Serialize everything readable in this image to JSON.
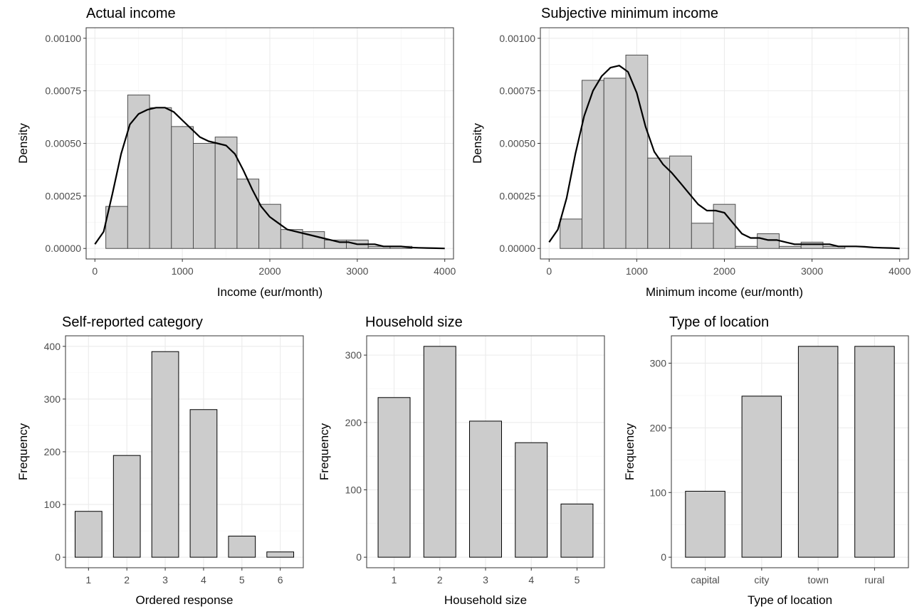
{
  "chart_data": [
    {
      "type": "histogram",
      "title": "Actual income",
      "xlabel": "Income (eur/month)",
      "ylabel": "Density",
      "xlim": [
        0,
        4000
      ],
      "ylim": [
        0,
        0.001
      ],
      "x_ticks": [
        0,
        1000,
        2000,
        3000,
        4000
      ],
      "x_tick_labels": [
        "0",
        "1000",
        "2000",
        "3000",
        "4000"
      ],
      "y_ticks": [
        0,
        0.00025,
        0.0005,
        0.00075,
        0.001
      ],
      "y_tick_labels": [
        "0.00000",
        "0.00025",
        "0.00050",
        "0.00075",
        "0.00100"
      ],
      "grid": true,
      "fill_color": "#cccccc",
      "bins": [
        {
          "x0": 125,
          "x1": 375,
          "density": 0.0002
        },
        {
          "x0": 375,
          "x1": 625,
          "density": 0.00073
        },
        {
          "x0": 625,
          "x1": 875,
          "density": 0.00067
        },
        {
          "x0": 875,
          "x1": 1125,
          "density": 0.00058
        },
        {
          "x0": 1125,
          "x1": 1375,
          "density": 0.0005
        },
        {
          "x0": 1375,
          "x1": 1625,
          "density": 0.00053
        },
        {
          "x0": 1625,
          "x1": 1875,
          "density": 0.00033
        },
        {
          "x0": 1875,
          "x1": 2125,
          "density": 0.00021
        },
        {
          "x0": 2125,
          "x1": 2375,
          "density": 9e-05
        },
        {
          "x0": 2375,
          "x1": 2625,
          "density": 8e-05
        },
        {
          "x0": 2625,
          "x1": 2875,
          "density": 4e-05
        },
        {
          "x0": 2875,
          "x1": 3125,
          "density": 4e-05
        },
        {
          "x0": 3125,
          "x1": 3375,
          "density": 1e-05
        },
        {
          "x0": 3375,
          "x1": 3625,
          "density": 1e-05
        }
      ],
      "density_curve": {
        "x": [
          0,
          100,
          200,
          300,
          400,
          500,
          600,
          700,
          800,
          900,
          1000,
          1100,
          1200,
          1300,
          1400,
          1500,
          1600,
          1700,
          1800,
          1900,
          2000,
          2100,
          2200,
          2300,
          2400,
          2500,
          2600,
          2700,
          2800,
          2900,
          3000,
          3100,
          3200,
          3300,
          3400,
          3500,
          3600,
          3700,
          3800,
          3900,
          4000
        ],
        "y": [
          2e-05,
          8e-05,
          0.00026,
          0.00045,
          0.00059,
          0.00064,
          0.00066,
          0.00067,
          0.00067,
          0.00065,
          0.00061,
          0.00057,
          0.00053,
          0.00051,
          0.0005,
          0.00049,
          0.00045,
          0.00037,
          0.00028,
          0.0002,
          0.00015,
          0.00012,
          9e-05,
          8e-05,
          7e-05,
          6e-05,
          5e-05,
          4e-05,
          3e-05,
          3e-05,
          2e-05,
          2e-05,
          2e-05,
          1e-05,
          1e-05,
          1e-05,
          5e-06,
          3e-06,
          2e-06,
          1e-06,
          0.0
        ]
      }
    },
    {
      "type": "histogram",
      "title": "Subjective minimum income",
      "xlabel": "Minimum income (eur/month)",
      "ylabel": "Density",
      "xlim": [
        0,
        4000
      ],
      "ylim": [
        0,
        0.001
      ],
      "x_ticks": [
        0,
        1000,
        2000,
        3000,
        4000
      ],
      "x_tick_labels": [
        "0",
        "1000",
        "2000",
        "3000",
        "4000"
      ],
      "y_ticks": [
        0,
        0.00025,
        0.0005,
        0.00075,
        0.001
      ],
      "y_tick_labels": [
        "0.00000",
        "0.00025",
        "0.00050",
        "0.00075",
        "0.00100"
      ],
      "grid": true,
      "fill_color": "#cccccc",
      "bins": [
        {
          "x0": 125,
          "x1": 375,
          "density": 0.00014
        },
        {
          "x0": 375,
          "x1": 625,
          "density": 0.0008
        },
        {
          "x0": 625,
          "x1": 875,
          "density": 0.00081
        },
        {
          "x0": 875,
          "x1": 1125,
          "density": 0.00092
        },
        {
          "x0": 1125,
          "x1": 1375,
          "density": 0.00043
        },
        {
          "x0": 1375,
          "x1": 1625,
          "density": 0.00044
        },
        {
          "x0": 1625,
          "x1": 1875,
          "density": 0.00012
        },
        {
          "x0": 1875,
          "x1": 2125,
          "density": 0.00021
        },
        {
          "x0": 2125,
          "x1": 2375,
          "density": 1e-05
        },
        {
          "x0": 2375,
          "x1": 2625,
          "density": 7e-05
        },
        {
          "x0": 2625,
          "x1": 2875,
          "density": 1e-05
        },
        {
          "x0": 2875,
          "x1": 3125,
          "density": 3e-05
        },
        {
          "x0": 3125,
          "x1": 3375,
          "density": 1e-05
        }
      ],
      "density_curve": {
        "x": [
          0,
          100,
          200,
          300,
          400,
          500,
          600,
          700,
          800,
          900,
          1000,
          1100,
          1200,
          1300,
          1400,
          1500,
          1600,
          1700,
          1800,
          1900,
          2000,
          2100,
          2200,
          2300,
          2400,
          2500,
          2600,
          2700,
          2800,
          2900,
          3000,
          3100,
          3200,
          3300,
          3400,
          3500,
          3600,
          3700,
          3800,
          3900,
          4000
        ],
        "y": [
          3e-05,
          9e-05,
          0.00024,
          0.00045,
          0.00063,
          0.00075,
          0.00082,
          0.00086,
          0.00087,
          0.00084,
          0.00074,
          0.00058,
          0.00046,
          0.0004,
          0.00036,
          0.00031,
          0.00026,
          0.00021,
          0.00018,
          0.00018,
          0.00017,
          0.00012,
          7e-05,
          5e-05,
          5e-05,
          4e-05,
          4e-05,
          3e-05,
          2e-05,
          2e-05,
          2e-05,
          2e-05,
          2e-05,
          1e-05,
          1e-05,
          1e-05,
          8e-06,
          5e-06,
          3e-06,
          2e-06,
          0.0
        ]
      }
    },
    {
      "type": "bar",
      "title": "Self-reported category",
      "xlabel": "Ordered response",
      "ylabel": "Frequency",
      "categories": [
        "1",
        "2",
        "3",
        "4",
        "5",
        "6"
      ],
      "values": [
        87,
        193,
        390,
        280,
        40,
        10
      ],
      "ylim": [
        0,
        400
      ],
      "y_ticks": [
        0,
        100,
        200,
        300,
        400
      ],
      "y_tick_labels": [
        "0",
        "100",
        "200",
        "300",
        "400"
      ],
      "grid": true,
      "fill_color": "#cccccc"
    },
    {
      "type": "bar",
      "title": "Household size",
      "xlabel": "Household size",
      "ylabel": "Frequency",
      "categories": [
        "1",
        "2",
        "3",
        "4",
        "5"
      ],
      "values": [
        237,
        313,
        202,
        170,
        79
      ],
      "ylim": [
        0,
        313
      ],
      "y_ticks": [
        0,
        100,
        200,
        300
      ],
      "y_tick_labels": [
        "0",
        "100",
        "200",
        "300"
      ],
      "grid": true,
      "fill_color": "#cccccc"
    },
    {
      "type": "bar",
      "title": "Type of location",
      "xlabel": "Type of location",
      "ylabel": "Frequency",
      "categories": [
        "capital",
        "city",
        "town",
        "rural"
      ],
      "values": [
        102,
        249,
        326,
        326
      ],
      "ylim": [
        0,
        326
      ],
      "y_ticks": [
        0,
        100,
        200,
        300
      ],
      "y_tick_labels": [
        "0",
        "100",
        "200",
        "300"
      ],
      "grid": true,
      "fill_color": "#cccccc"
    }
  ]
}
